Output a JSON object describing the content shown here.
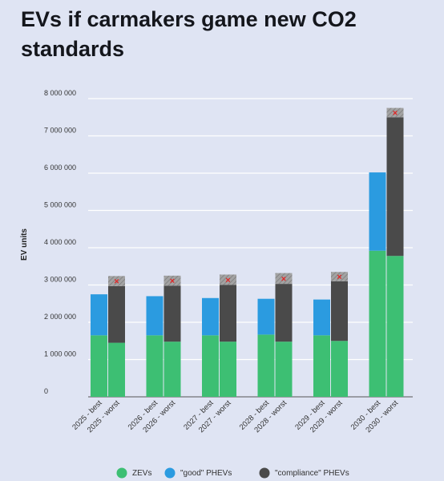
{
  "title": "EVs if carmakers game new CO2 standards",
  "chart_data": {
    "type": "bar",
    "stacked": true,
    "ylabel": "EV units",
    "ylim": [
      0,
      8000000
    ],
    "yticks": [
      0,
      1000000,
      2000000,
      3000000,
      4000000,
      5000000,
      6000000,
      7000000,
      8000000
    ],
    "ytick_labels": [
      "0",
      "1 000 000",
      "2 000 000",
      "3 000 000",
      "4 000 000",
      "5 000 000",
      "6 000 000",
      "7 000 000",
      "8 000 000"
    ],
    "grid": true,
    "legend_position": "bottom",
    "categories": [
      "2025 - best",
      "2025 - worst",
      "2026 - best",
      "2026 - worst",
      "2027 - best",
      "2027 - worst",
      "2028 - best",
      "2028 - worst",
      "2029 - best",
      "2029 - worst",
      "2030 - best",
      "2030 - worst"
    ],
    "series": [
      {
        "name": "ZEVs",
        "color": "#3dbf73",
        "values": [
          1650000,
          1450000,
          1650000,
          1480000,
          1650000,
          1480000,
          1670000,
          1480000,
          1650000,
          1500000,
          3920000,
          3780000
        ]
      },
      {
        "name": "\"good\" PHEVs",
        "color": "#2b9be0",
        "values": [
          1100000,
          0,
          1050000,
          0,
          1000000,
          0,
          960000,
          0,
          960000,
          0,
          2100000,
          0
        ]
      },
      {
        "name": "\"compliance\" PHEVs",
        "color": "#4a4a4a",
        "values": [
          0,
          1520000,
          0,
          1500000,
          0,
          1520000,
          0,
          1550000,
          0,
          1600000,
          0,
          3720000
        ]
      }
    ],
    "hatched_cap": {
      "color": "#9a9a9a",
      "marker": "x",
      "marker_color": "#e02828",
      "values": [
        0,
        270000,
        0,
        270000,
        0,
        280000,
        0,
        290000,
        0,
        250000,
        0,
        250000
      ]
    }
  }
}
